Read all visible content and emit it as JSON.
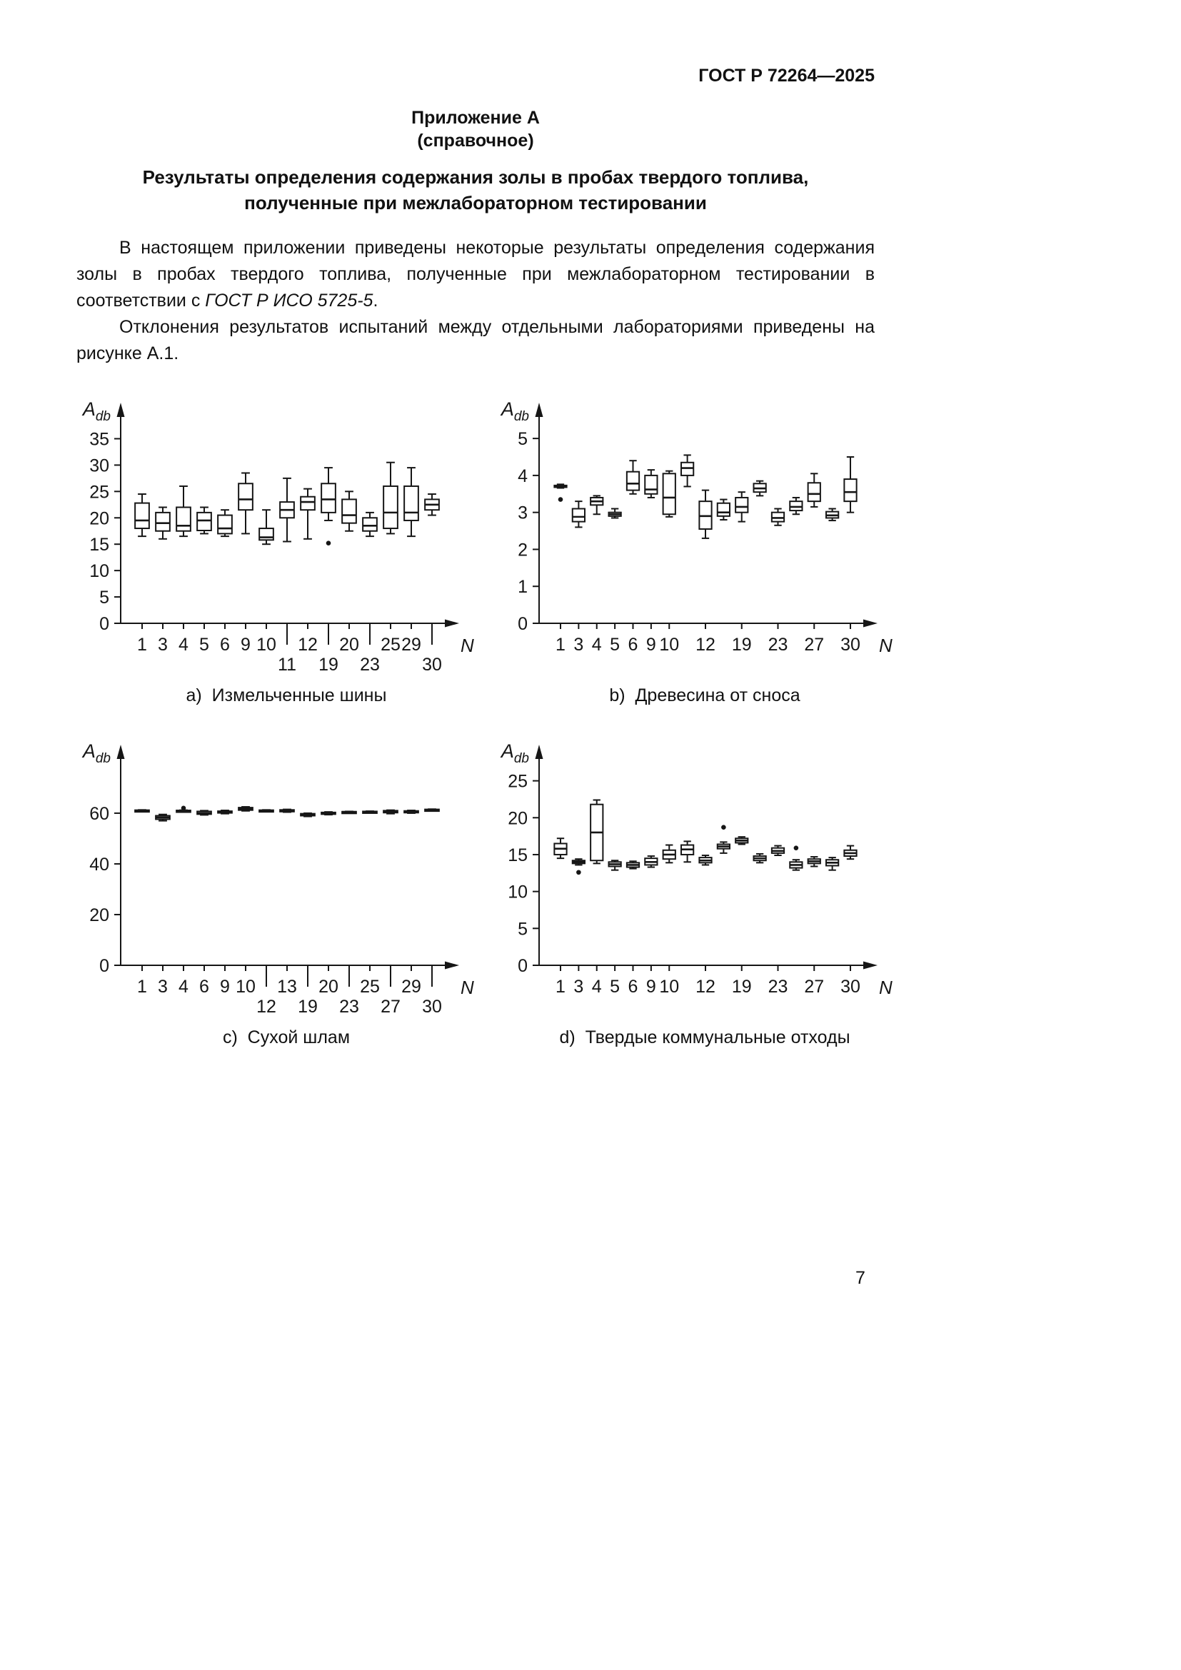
{
  "header": {
    "code": "ГОСТ Р 72264—2025"
  },
  "annex": {
    "label": "Приложение А",
    "note": "(справочное)"
  },
  "title": {
    "line1": "Результаты определения содержания золы в пробах твердого топлива,",
    "line2": "полученные при межлабораторном тестировании"
  },
  "paragraphs": {
    "p1_before": "В настоящем приложении приведены некоторые результаты определения содержания золы в пробах твердого топлива, полученные при межлабораторном тестировании в соответствии с ",
    "p1_italic": "ГОСТ Р ИСО 5725-5",
    "p1_after": ".",
    "p2": "Отклонения результатов испытаний между отдельными лабораториями приведены на рисунке А.1."
  },
  "footer": {
    "page_number": "7"
  },
  "chart_data": [
    {
      "type": "boxplot",
      "caption": "a)  Измельченные шины",
      "x_axis_label": "N",
      "y_axis_label": {
        "base": "A",
        "sub": "db"
      },
      "y_ticks": [
        0,
        5,
        10,
        15,
        20,
        25,
        30,
        35
      ],
      "y_axis_max": 37.5,
      "boxes": [
        {
          "label": "1",
          "row": 0,
          "low": 16.5,
          "q1": 18.0,
          "median": 19.5,
          "q3": 22.8,
          "high": 24.5
        },
        {
          "label": "3",
          "row": 0,
          "low": 16.0,
          "q1": 17.5,
          "median": 19.0,
          "q3": 21.0,
          "high": 22.0
        },
        {
          "label": "4",
          "row": 0,
          "low": 16.5,
          "q1": 17.5,
          "median": 18.5,
          "q3": 22.0,
          "high": 26.0
        },
        {
          "label": "5",
          "row": 0,
          "low": 17.0,
          "q1": 17.6,
          "median": 19.5,
          "q3": 21.0,
          "high": 22.0
        },
        {
          "label": "6",
          "row": 0,
          "low": 16.5,
          "q1": 17.0,
          "median": 18.0,
          "q3": 20.5,
          "high": 21.5
        },
        {
          "label": "9",
          "row": 0,
          "low": 17.0,
          "q1": 21.5,
          "median": 23.5,
          "q3": 26.5,
          "high": 28.5
        },
        {
          "label": "10",
          "row": 0,
          "low": 15.0,
          "q1": 15.8,
          "median": 16.3,
          "q3": 18.0,
          "high": 21.5
        },
        {
          "label": "11",
          "row": 1,
          "low": 15.5,
          "q1": 20.0,
          "median": 21.5,
          "q3": 23.0,
          "high": 27.5
        },
        {
          "label": "12",
          "row": 0,
          "low": 16.0,
          "q1": 21.5,
          "median": 23.0,
          "q3": 24.0,
          "high": 25.5
        },
        {
          "label": "19",
          "row": 1,
          "low": 19.5,
          "q1": 21.0,
          "median": 23.5,
          "q3": 26.5,
          "high": 29.5,
          "outliers": [
            15.2
          ]
        },
        {
          "label": "20",
          "row": 0,
          "low": 17.5,
          "q1": 19.0,
          "median": 20.5,
          "q3": 23.5,
          "high": 25.0
        },
        {
          "label": "23",
          "row": 1,
          "low": 16.5,
          "q1": 17.5,
          "median": 18.5,
          "q3": 20.0,
          "high": 21.0
        },
        {
          "label": "25",
          "row": 0,
          "low": 17.0,
          "q1": 18.0,
          "median": 21.0,
          "q3": 26.0,
          "high": 30.5
        },
        {
          "label": "29",
          "row": 0,
          "low": 16.5,
          "q1": 19.5,
          "median": 21.0,
          "q3": 26.0,
          "high": 29.5
        },
        {
          "label": "30",
          "row": 1,
          "low": 20.5,
          "q1": 21.5,
          "median": 22.5,
          "q3": 23.5,
          "high": 24.5
        }
      ]
    },
    {
      "type": "boxplot",
      "caption": "b)  Древесина от сноса",
      "x_axis_label": "N",
      "y_axis_label": {
        "base": "A",
        "sub": "db"
      },
      "y_ticks": [
        0,
        1,
        2,
        3,
        4,
        5
      ],
      "y_axis_max": 5.35,
      "boxes": [
        {
          "label": "1",
          "row": 0,
          "low": 3.66,
          "q1": 3.68,
          "median": 3.7,
          "q3": 3.73,
          "high": 3.76,
          "outliers": [
            3.35
          ]
        },
        {
          "label": "3",
          "row": 0,
          "low": 2.6,
          "q1": 2.75,
          "median": 2.88,
          "q3": 3.1,
          "high": 3.3
        },
        {
          "label": "4",
          "row": 0,
          "low": 2.95,
          "q1": 3.2,
          "median": 3.3,
          "q3": 3.4,
          "high": 3.45
        },
        {
          "label": "5",
          "row": 0,
          "low": 2.85,
          "q1": 2.9,
          "median": 2.95,
          "q3": 3.0,
          "high": 3.1
        },
        {
          "label": "6",
          "row": 0,
          "low": 3.5,
          "q1": 3.6,
          "median": 3.78,
          "q3": 4.1,
          "high": 4.4
        },
        {
          "label": "9",
          "row": 0,
          "low": 3.4,
          "q1": 3.5,
          "median": 3.62,
          "q3": 4.0,
          "high": 4.15
        },
        {
          "label": "10",
          "row": 0,
          "low": 2.88,
          "q1": 2.95,
          "median": 3.4,
          "q3": 4.05,
          "high": 4.12
        },
        {
          "label": "",
          "row": 0,
          "low": 3.7,
          "q1": 4.0,
          "median": 4.2,
          "q3": 4.35,
          "high": 4.55
        },
        {
          "label": "12",
          "row": 0,
          "low": 2.3,
          "q1": 2.55,
          "median": 2.9,
          "q3": 3.3,
          "high": 3.6
        },
        {
          "label": "",
          "row": 0,
          "low": 2.8,
          "q1": 2.9,
          "median": 3.0,
          "q3": 3.25,
          "high": 3.35
        },
        {
          "label": "19",
          "row": 0,
          "low": 2.75,
          "q1": 3.0,
          "median": 3.15,
          "q3": 3.4,
          "high": 3.55
        },
        {
          "label": "",
          "row": 0,
          "low": 3.45,
          "q1": 3.55,
          "median": 3.65,
          "q3": 3.78,
          "high": 3.85
        },
        {
          "label": "23",
          "row": 0,
          "low": 2.65,
          "q1": 2.75,
          "median": 2.85,
          "q3": 3.0,
          "high": 3.1
        },
        {
          "label": "",
          "row": 0,
          "low": 2.95,
          "q1": 3.05,
          "median": 3.15,
          "q3": 3.3,
          "high": 3.4
        },
        {
          "label": "27",
          "row": 0,
          "low": 3.15,
          "q1": 3.3,
          "median": 3.5,
          "q3": 3.8,
          "high": 4.05
        },
        {
          "label": "",
          "row": 0,
          "low": 2.78,
          "q1": 2.85,
          "median": 2.92,
          "q3": 3.02,
          "high": 3.1
        },
        {
          "label": "30",
          "row": 0,
          "low": 3.0,
          "q1": 3.3,
          "median": 3.55,
          "q3": 3.9,
          "high": 4.5
        }
      ]
    },
    {
      "type": "boxplot",
      "caption": "c)  Сухой шлам",
      "x_axis_label": "N",
      "y_axis_label": {
        "base": "A",
        "sub": "db"
      },
      "y_ticks": [
        0,
        20,
        40,
        60
      ],
      "y_axis_max": 78,
      "boxes": [
        {
          "label": "1",
          "row": 0,
          "low": 60.8,
          "q1": 60.9,
          "median": 61.0,
          "q3": 61.2,
          "high": 61.3
        },
        {
          "label": "3",
          "row": 0,
          "low": 57.0,
          "q1": 57.6,
          "median": 58.3,
          "q3": 59.0,
          "high": 59.5
        },
        {
          "label": "4",
          "row": 0,
          "low": 60.8,
          "q1": 60.9,
          "median": 61.0,
          "q3": 61.1,
          "high": 61.2,
          "outliers": [
            62.0
          ]
        },
        {
          "label": "6",
          "row": 0,
          "low": 59.3,
          "q1": 59.6,
          "median": 60.0,
          "q3": 60.7,
          "high": 61.0
        },
        {
          "label": "9",
          "row": 0,
          "low": 59.8,
          "q1": 60.1,
          "median": 60.4,
          "q3": 60.8,
          "high": 61.1
        },
        {
          "label": "10",
          "row": 0,
          "low": 60.9,
          "q1": 61.2,
          "median": 61.7,
          "q3": 62.2,
          "high": 62.5
        },
        {
          "label": "12",
          "row": 1,
          "low": 60.6,
          "q1": 60.8,
          "median": 61.0,
          "q3": 61.2,
          "high": 61.3
        },
        {
          "label": "13",
          "row": 0,
          "low": 60.4,
          "q1": 60.7,
          "median": 61.0,
          "q3": 61.3,
          "high": 61.5
        },
        {
          "label": "19",
          "row": 1,
          "low": 58.7,
          "q1": 59.0,
          "median": 59.4,
          "q3": 59.8,
          "high": 60.0
        },
        {
          "label": "20",
          "row": 0,
          "low": 59.4,
          "q1": 59.7,
          "median": 60.0,
          "q3": 60.3,
          "high": 60.5
        },
        {
          "label": "23",
          "row": 1,
          "low": 60.2,
          "q1": 60.3,
          "median": 60.5,
          "q3": 60.6,
          "high": 60.7
        },
        {
          "label": "25",
          "row": 0,
          "low": 60.2,
          "q1": 60.4,
          "median": 60.5,
          "q3": 60.7,
          "high": 60.8
        },
        {
          "label": "27",
          "row": 1,
          "low": 59.8,
          "q1": 60.2,
          "median": 60.6,
          "q3": 61.0,
          "high": 61.2
        },
        {
          "label": "29",
          "row": 0,
          "low": 60.0,
          "q1": 60.3,
          "median": 60.6,
          "q3": 60.9,
          "high": 61.1
        },
        {
          "label": "30",
          "row": 1,
          "low": 60.9,
          "q1": 61.1,
          "median": 61.3,
          "q3": 61.5,
          "high": 61.6
        }
      ]
    },
    {
      "type": "boxplot",
      "caption": "d)  Твердые коммунальные отходы",
      "x_axis_label": "N",
      "y_axis_label": {
        "base": "A",
        "sub": "db"
      },
      "y_ticks": [
        0,
        5,
        10,
        15,
        20,
        25
      ],
      "y_axis_max": 26.8,
      "boxes": [
        {
          "label": "1",
          "row": 0,
          "low": 14.5,
          "q1": 15.0,
          "median": 15.8,
          "q3": 16.5,
          "high": 17.2
        },
        {
          "label": "3",
          "row": 0,
          "low": 13.6,
          "q1": 13.8,
          "median": 14.0,
          "q3": 14.2,
          "high": 14.4,
          "outliers": [
            12.6
          ]
        },
        {
          "label": "4",
          "row": 0,
          "low": 13.8,
          "q1": 14.2,
          "median": 18.0,
          "q3": 21.8,
          "high": 22.4
        },
        {
          "label": "5",
          "row": 0,
          "low": 12.9,
          "q1": 13.4,
          "median": 13.7,
          "q3": 14.0,
          "high": 14.2
        },
        {
          "label": "6",
          "row": 0,
          "low": 13.1,
          "q1": 13.3,
          "median": 13.6,
          "q3": 13.9,
          "high": 14.1
        },
        {
          "label": "9",
          "row": 0,
          "low": 13.3,
          "q1": 13.6,
          "median": 14.0,
          "q3": 14.5,
          "high": 14.8
        },
        {
          "label": "10",
          "row": 0,
          "low": 13.9,
          "q1": 14.4,
          "median": 15.0,
          "q3": 15.6,
          "high": 16.3
        },
        {
          "label": "",
          "row": 0,
          "low": 14.0,
          "q1": 15.0,
          "median": 15.7,
          "q3": 16.3,
          "high": 16.8
        },
        {
          "label": "12",
          "row": 0,
          "low": 13.6,
          "q1": 13.9,
          "median": 14.2,
          "q3": 14.6,
          "high": 14.9
        },
        {
          "label": "",
          "row": 0,
          "low": 15.2,
          "q1": 15.8,
          "median": 16.1,
          "q3": 16.4,
          "high": 16.7,
          "outliers": [
            18.7
          ]
        },
        {
          "label": "19",
          "row": 0,
          "low": 16.4,
          "q1": 16.6,
          "median": 16.9,
          "q3": 17.2,
          "high": 17.4
        },
        {
          "label": "",
          "row": 0,
          "low": 13.9,
          "q1": 14.2,
          "median": 14.5,
          "q3": 14.8,
          "high": 15.1
        },
        {
          "label": "23",
          "row": 0,
          "low": 14.9,
          "q1": 15.2,
          "median": 15.5,
          "q3": 15.9,
          "high": 16.2
        },
        {
          "label": "",
          "row": 0,
          "low": 12.9,
          "q1": 13.2,
          "median": 13.6,
          "q3": 14.0,
          "high": 14.3,
          "outliers": [
            15.9
          ]
        },
        {
          "label": "27",
          "row": 0,
          "low": 13.4,
          "q1": 13.8,
          "median": 14.1,
          "q3": 14.4,
          "high": 14.7
        },
        {
          "label": "",
          "row": 0,
          "low": 12.9,
          "q1": 13.5,
          "median": 13.9,
          "q3": 14.3,
          "high": 14.6
        },
        {
          "label": "30",
          "row": 0,
          "low": 14.4,
          "q1": 14.8,
          "median": 15.2,
          "q3": 15.6,
          "high": 16.2
        }
      ]
    }
  ]
}
